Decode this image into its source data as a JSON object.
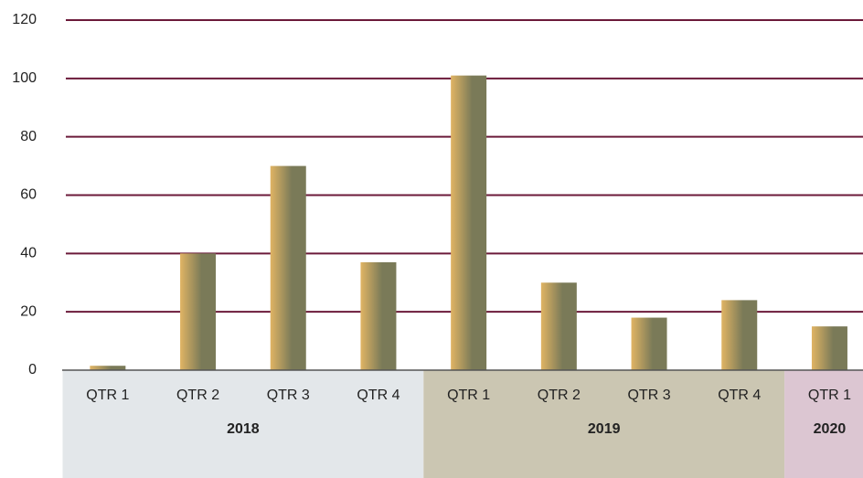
{
  "chart_data": {
    "type": "bar",
    "categories": [
      "QTR 1",
      "QTR 2",
      "QTR 3",
      "QTR 4",
      "QTR 1",
      "QTR 2",
      "QTR 3",
      "QTR 4",
      "QTR 1"
    ],
    "values": [
      1.5,
      40,
      70,
      37,
      101,
      30,
      18,
      24,
      15
    ],
    "groups": [
      {
        "label": "2018",
        "count": 4,
        "color": "#e3e7ea"
      },
      {
        "label": "2019",
        "count": 4,
        "color": "#cbc6b2"
      },
      {
        "label": "2020",
        "count": 1,
        "color": "#dcc6d2"
      }
    ],
    "color": [
      "#e0b464",
      "#7a7a58"
    ],
    "grid_color": "#6b1a3a",
    "ylim": [
      0,
      120
    ],
    "yticks": [
      0,
      20,
      40,
      60,
      80,
      100,
      120
    ],
    "grid": true
  }
}
